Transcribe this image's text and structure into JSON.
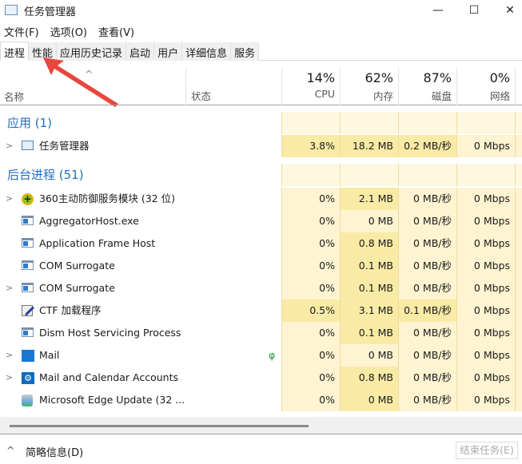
{
  "window": {
    "title": "任务管理器",
    "minimize": "—",
    "maximize": "☐",
    "close": "✕"
  },
  "menu": [
    "文件(F)",
    "选项(O)",
    "查看(V)"
  ],
  "tabs": [
    "进程",
    "性能",
    "应用历史记录",
    "启动",
    "用户",
    "详细信息",
    "服务"
  ],
  "columns": {
    "name": "名称",
    "status": "状态",
    "cpu": {
      "pct": "14%",
      "label": "CPU"
    },
    "memory": {
      "pct": "62%",
      "label": "内存"
    },
    "disk": {
      "pct": "87%",
      "label": "磁盘"
    },
    "network": {
      "pct": "0%",
      "label": "网络"
    }
  },
  "groups": [
    {
      "label": "应用 (1)"
    },
    {
      "label": "后台进程 (51)"
    }
  ],
  "apps": [
    {
      "name": "任务管理器",
      "icon": "task-manager-icon",
      "expand": true,
      "cpu": "3.8%",
      "mem": "18.2 MB",
      "disk": "0.2 MB/秒",
      "net": "0 Mbps",
      "heat": "dddl"
    }
  ],
  "processes": [
    {
      "name": "360主动防御服务模块 (32 位)",
      "icon": "360-icon",
      "expand": true,
      "cpu": "0%",
      "mem": "2.1 MB",
      "disk": "0 MB/秒",
      "net": "0 Mbps",
      "heat": "ldll"
    },
    {
      "name": "AggregatorHost.exe",
      "icon": "app-window-icon",
      "expand": false,
      "cpu": "0%",
      "mem": "0 MB",
      "disk": "0 MB/秒",
      "net": "0 Mbps",
      "heat": "llll"
    },
    {
      "name": "Application Frame Host",
      "icon": "app-window-icon",
      "expand": false,
      "cpu": "0%",
      "mem": "0.8 MB",
      "disk": "0 MB/秒",
      "net": "0 Mbps",
      "heat": "ldll"
    },
    {
      "name": "COM Surrogate",
      "icon": "app-window-icon",
      "expand": false,
      "cpu": "0%",
      "mem": "0.1 MB",
      "disk": "0 MB/秒",
      "net": "0 Mbps",
      "heat": "ldll"
    },
    {
      "name": "COM Surrogate",
      "icon": "app-window-icon",
      "expand": true,
      "cpu": "0%",
      "mem": "0.1 MB",
      "disk": "0 MB/秒",
      "net": "0 Mbps",
      "heat": "ldll"
    },
    {
      "name": "CTF 加载程序",
      "icon": "pen-icon",
      "expand": false,
      "cpu": "0.5%",
      "mem": "3.1 MB",
      "disk": "0.1 MB/秒",
      "net": "0 Mbps",
      "heat": "dddl"
    },
    {
      "name": "Dism Host Servicing Process",
      "icon": "app-window-icon",
      "expand": false,
      "cpu": "0%",
      "mem": "0.1 MB",
      "disk": "0 MB/秒",
      "net": "0 Mbps",
      "heat": "ldll"
    },
    {
      "name": "Mail",
      "icon": "mail-icon",
      "expand": true,
      "status": "leaf",
      "cpu": "0%",
      "mem": "0 MB",
      "disk": "0 MB/秒",
      "net": "0 Mbps",
      "heat": "llll"
    },
    {
      "name": "Mail and Calendar Accounts",
      "icon": "gear-icon",
      "expand": true,
      "cpu": "0%",
      "mem": "0.8 MB",
      "disk": "0 MB/秒",
      "net": "0 Mbps",
      "heat": "ldll"
    },
    {
      "name": "Microsoft Edge Update (32 ...",
      "icon": "edge-update-icon",
      "expand": false,
      "cpu": "0%",
      "mem": "0 MB",
      "disk": "0 MB/秒",
      "net": "0 Mbps",
      "heat": "ldll"
    }
  ],
  "footer": {
    "summary": "简略信息(D)",
    "end_task": "结束任务(E)"
  },
  "colors": {
    "heat_light": "#fff4d1",
    "heat_dark": "#f9eba5",
    "group": "#1f6fc5",
    "arrow": "#e8453c"
  }
}
